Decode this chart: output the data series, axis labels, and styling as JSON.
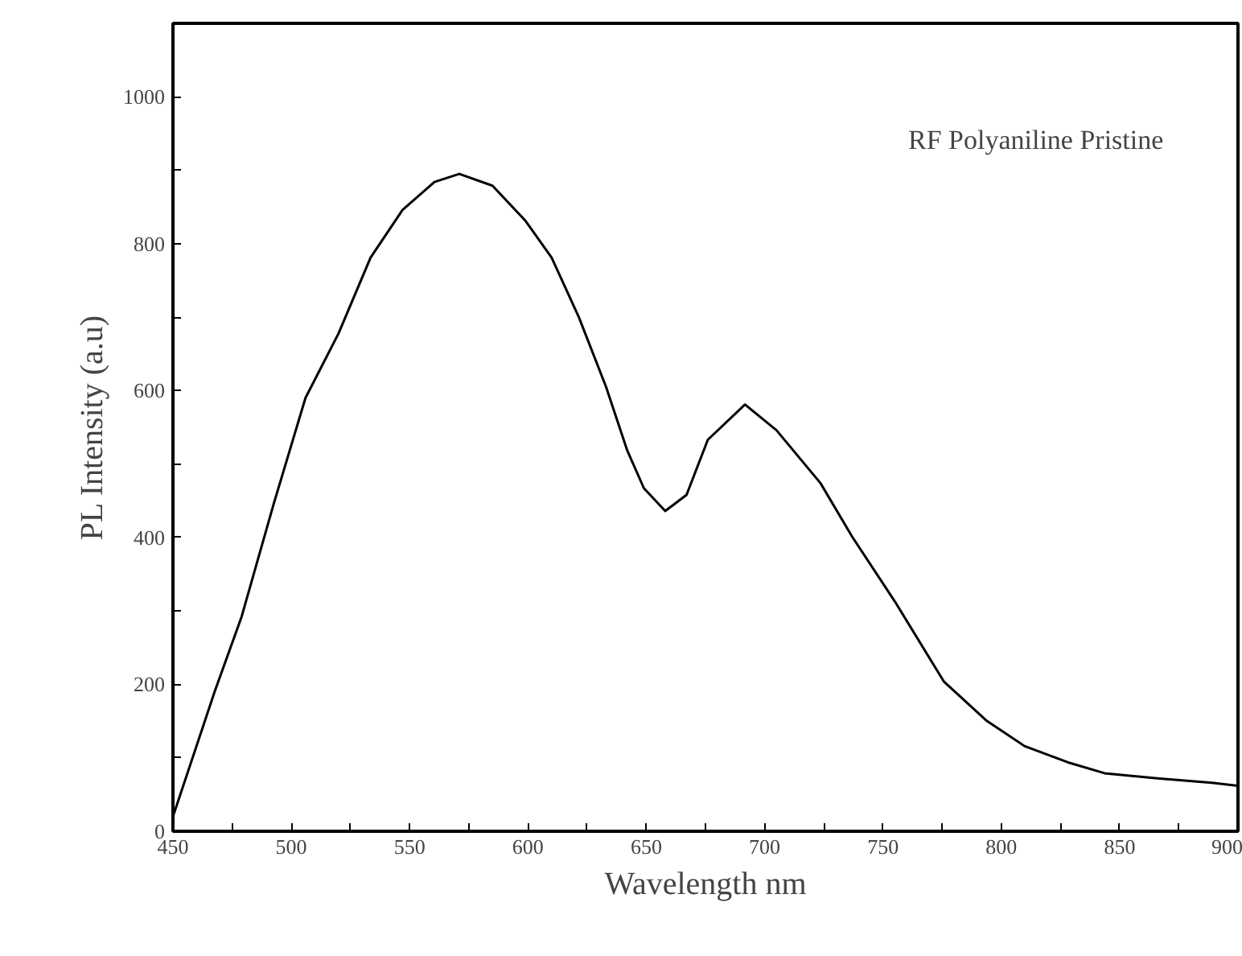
{
  "chart_data": {
    "type": "line",
    "xlabel": "Wavelength nm",
    "ylabel": "PL Intensity (a.u)",
    "annotations": [
      "RF Polyaniline Pristine"
    ],
    "x": [
      450,
      467.5,
      479,
      492.5,
      506,
      520,
      533.5,
      547,
      560.5,
      571,
      585,
      599,
      610,
      621.5,
      633,
      642,
      649,
      658,
      667,
      676,
      691.7,
      705,
      723.6,
      737,
      755,
      775.7,
      793.6,
      809.8,
      828,
      843.7,
      866,
      889,
      900
    ],
    "series": [
      {
        "color": "#000000",
        "values": [
          20,
          189,
          292,
          445,
          590,
          678,
          781,
          846,
          884,
          895,
          879,
          831,
          781,
          700,
          605,
          518,
          467,
          436,
          458,
          533,
          581,
          546,
          474,
          401,
          313,
          204,
          151,
          116,
          94,
          79,
          72,
          66,
          62
        ]
      }
    ],
    "xlim": [
      450,
      900
    ],
    "ylim": [
      0,
      1100
    ],
    "xticks": [
      450,
      {
        "value": 475,
        "label": null
      },
      500,
      {
        "value": 525,
        "label": null
      },
      550,
      {
        "value": 575,
        "label": null
      },
      600,
      {
        "value": 625,
        "label": null
      },
      650,
      {
        "value": 675,
        "label": null
      },
      700,
      {
        "value": 725,
        "label": null
      },
      750,
      {
        "value": 775,
        "label": null
      },
      800,
      {
        "value": 825,
        "label": null
      },
      850,
      {
        "value": 875,
        "label": null
      },
      900
    ],
    "yticks": [
      0,
      {
        "value": 100,
        "label": null
      },
      200,
      {
        "value": 300,
        "label": null
      },
      400,
      {
        "value": 500,
        "label": null
      },
      600,
      {
        "value": 700,
        "label": null
      },
      800,
      {
        "value": 900,
        "label": null
      },
      1000
    ],
    "grid": false,
    "marker": "none",
    "line_style": "solid"
  }
}
